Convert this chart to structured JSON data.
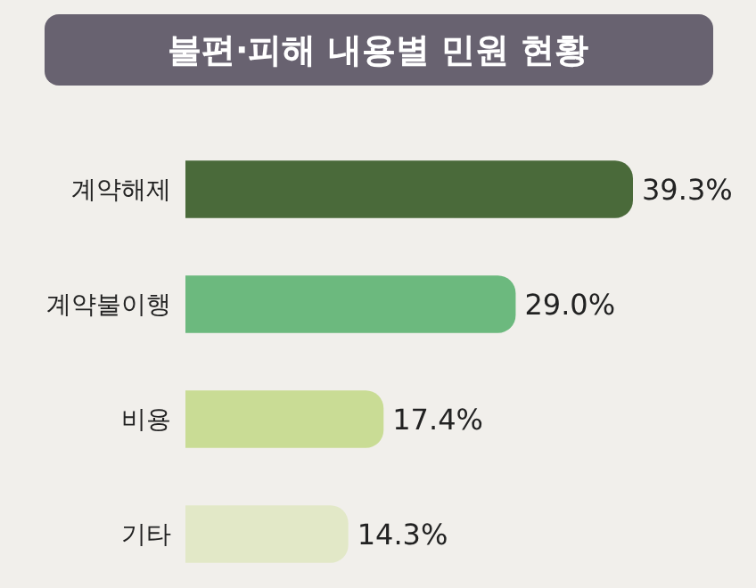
{
  "chart_data": {
    "type": "bar",
    "orientation": "horizontal",
    "title": "불편·피해 내용별 민원 현황",
    "categories": [
      "계약해제",
      "계약불이행",
      "비용",
      "기타"
    ],
    "values": [
      39.3,
      29.0,
      17.4,
      14.3
    ],
    "colors": [
      "#4a6a3a",
      "#6cb97e",
      "#c9dc95",
      "#e2e8c7"
    ],
    "data_labels": true,
    "value_labels": [
      "39.3%",
      "29.0%",
      "17.4%",
      "14.3%"
    ]
  }
}
